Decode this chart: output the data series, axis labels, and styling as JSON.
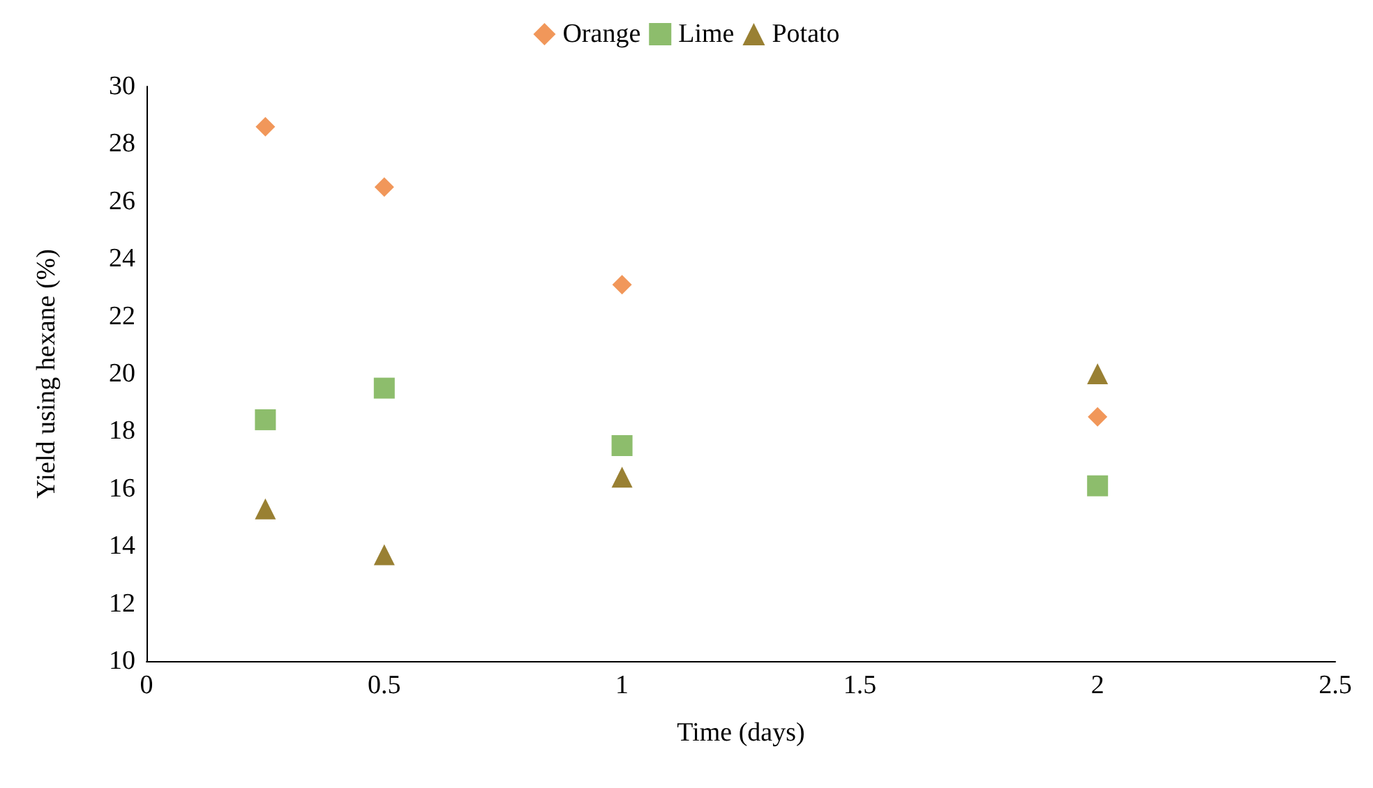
{
  "chart_data": {
    "type": "scatter",
    "xlabel": "Time (days)",
    "ylabel": "Yield using hexane (%)",
    "x": [
      0.25,
      0.5,
      1,
      2
    ],
    "series": [
      {
        "name": "Orange",
        "color": "#ed7d31",
        "marker": "diamond",
        "values": [
          28.6,
          26.5,
          23.1,
          18.5
        ]
      },
      {
        "name": "Lime",
        "color": "#70ad47",
        "marker": "square",
        "values": [
          18.4,
          19.5,
          17.5,
          16.1
        ]
      },
      {
        "name": "Potato",
        "color": "#7f6000",
        "marker": "triangle",
        "values": [
          15.3,
          13.7,
          16.4,
          20.0
        ]
      }
    ],
    "xlim": [
      0,
      2.5
    ],
    "xticks": [
      0,
      0.5,
      1,
      1.5,
      2,
      2.5
    ],
    "ylim": [
      10,
      30
    ],
    "yticks": [
      10,
      12,
      14,
      16,
      18,
      20,
      22,
      24,
      26,
      28,
      30
    ],
    "grid": false,
    "legend": "top"
  }
}
